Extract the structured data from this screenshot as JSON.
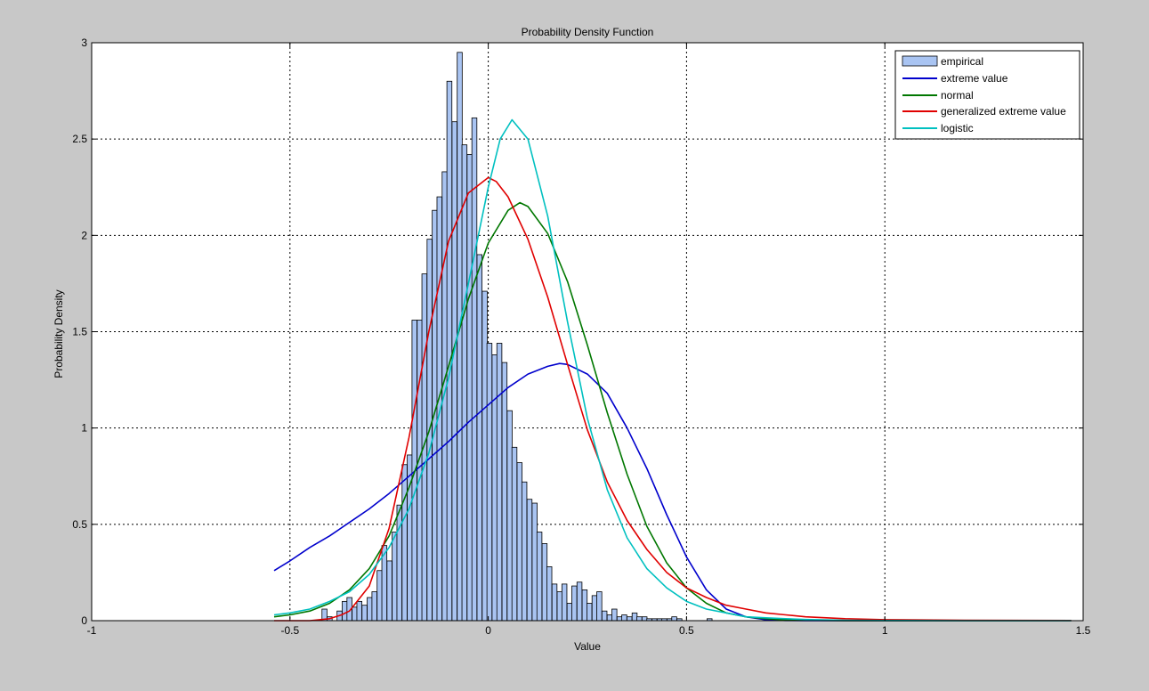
{
  "chart_data": {
    "type": "bar",
    "title": "Probability Density Function",
    "xlabel": "Value",
    "ylabel": "Probability Density",
    "xlim": [
      -1,
      1.5
    ],
    "ylim": [
      0,
      3
    ],
    "xticks": [
      -1,
      -0.5,
      0,
      0.5,
      1,
      1.5
    ],
    "xtick_labels": [
      "-1",
      "-0.5",
      "0",
      "0.5",
      "1",
      "1.5"
    ],
    "yticks": [
      0,
      0.5,
      1,
      1.5,
      2,
      2.5,
      3
    ],
    "ytick_labels": [
      "0",
      "0.5",
      "1",
      "1.5",
      "2",
      "2.5",
      "3"
    ],
    "grid": true,
    "legend_position": "top-right",
    "colors": {
      "axes_background": "#ffffff",
      "figure_background": "#c8c8c8",
      "grid": "#000000",
      "empirical_fill": "#a9c4f2",
      "empirical_edge": "#000000",
      "extreme_value": "#0000cc",
      "normal": "#007700",
      "gev": "#e00000",
      "logistic": "#00c0c0"
    },
    "histogram": {
      "name": "empirical",
      "bin_width": 0.0126,
      "x": [
        -0.413,
        -0.4,
        -0.388,
        -0.375,
        -0.362,
        -0.35,
        -0.337,
        -0.325,
        -0.312,
        -0.299,
        -0.287,
        -0.274,
        -0.262,
        -0.249,
        -0.236,
        -0.224,
        -0.211,
        -0.198,
        -0.186,
        -0.173,
        -0.161,
        -0.148,
        -0.135,
        -0.123,
        -0.11,
        -0.098,
        -0.085,
        -0.072,
        -0.06,
        -0.047,
        -0.035,
        -0.022,
        -0.009,
        0.003,
        0.016,
        0.028,
        0.041,
        0.054,
        0.066,
        0.079,
        0.091,
        0.104,
        0.117,
        0.129,
        0.142,
        0.154,
        0.167,
        0.18,
        0.192,
        0.205,
        0.217,
        0.23,
        0.243,
        0.255,
        0.268,
        0.28,
        0.293,
        0.306,
        0.318,
        0.331,
        0.343,
        0.356,
        0.369,
        0.381,
        0.394,
        0.406,
        0.419,
        0.432,
        0.444,
        0.457,
        0.469,
        0.482,
        0.495,
        0.507,
        0.52,
        0.533,
        0.545,
        0.558,
        0.57,
        0.583,
        0.596,
        0.608,
        0.621,
        0.633,
        0.646,
        0.659,
        0.671,
        0.684,
        0.696,
        0.709,
        0.722,
        0.734,
        0.747,
        0.759,
        0.772,
        0.785,
        0.797,
        0.81,
        0.822,
        0.835,
        0.848,
        0.86,
        0.873,
        0.885,
        0.898,
        0.911,
        0.923,
        0.936,
        0.948,
        0.961,
        0.974,
        0.986,
        0.999,
        1.011,
        1.024,
        1.037,
        1.049,
        1.062,
        1.074,
        1.087,
        1.1,
        1.112,
        1.125,
        1.137,
        1.15,
        1.163,
        1.175,
        1.188,
        1.2,
        1.213,
        1.226,
        1.238,
        1.251,
        1.263,
        1.276,
        1.289,
        1.301,
        1.314,
        1.326,
        1.339
      ],
      "values": [
        0.06,
        0.02,
        0.0,
        0.05,
        0.1,
        0.12,
        0.07,
        0.1,
        0.08,
        0.12,
        0.15,
        0.26,
        0.39,
        0.31,
        0.46,
        0.6,
        0.81,
        0.86,
        1.56,
        1.56,
        1.8,
        1.98,
        2.13,
        2.2,
        2.33,
        2.8,
        2.59,
        2.95,
        2.47,
        2.42,
        2.61,
        1.9,
        1.71,
        1.44,
        1.38,
        1.44,
        1.34,
        1.09,
        0.9,
        0.82,
        0.72,
        0.63,
        0.61,
        0.46,
        0.4,
        0.28,
        0.19,
        0.15,
        0.19,
        0.09,
        0.18,
        0.2,
        0.16,
        0.09,
        0.13,
        0.15,
        0.05,
        0.03,
        0.06,
        0.02,
        0.03,
        0.02,
        0.04,
        0.02,
        0.02,
        0.01,
        0.01,
        0.01,
        0.01,
        0.01,
        0.02,
        0.01,
        0.0,
        0.0,
        0.0,
        0.0,
        0.0,
        0.01,
        0.0,
        0.0,
        0.0,
        0.0,
        0.0,
        0.0,
        0.0,
        0.0,
        0.0,
        0.0,
        0.0,
        0.0,
        0.0,
        0.0,
        0.0,
        0.0,
        0.0,
        0.0,
        0.0,
        0.0,
        0.0,
        0.0,
        0.0,
        0.0,
        0.0,
        0.0,
        0.0,
        0.0,
        0.0,
        0.0,
        0.0,
        0.0,
        0.0,
        0.0,
        0.0,
        0.0,
        0.0,
        0.0,
        0.0,
        0.0,
        0.0,
        0.0,
        0.0,
        0.0,
        0.0,
        0.0,
        0.0,
        0.0,
        0.0,
        0.0,
        0.0,
        0.0,
        0.0,
        0.0,
        0.0,
        0.0,
        0.0,
        0.0,
        0.0,
        0.0,
        0.0,
        0.0
      ]
    },
    "series": [
      {
        "name": "extreme value",
        "color": "#0000cc",
        "x": [
          -0.54,
          -0.5,
          -0.45,
          -0.4,
          -0.35,
          -0.3,
          -0.25,
          -0.2,
          -0.15,
          -0.1,
          -0.05,
          0.0,
          0.05,
          0.1,
          0.15,
          0.18,
          0.2,
          0.25,
          0.3,
          0.35,
          0.4,
          0.45,
          0.5,
          0.55,
          0.6,
          0.65,
          0.7,
          0.75,
          0.8,
          0.9,
          1.0,
          1.2,
          1.47
        ],
        "y": [
          0.26,
          0.31,
          0.38,
          0.44,
          0.51,
          0.58,
          0.66,
          0.75,
          0.84,
          0.93,
          1.03,
          1.12,
          1.21,
          1.28,
          1.32,
          1.335,
          1.33,
          1.28,
          1.18,
          1.0,
          0.79,
          0.55,
          0.33,
          0.16,
          0.06,
          0.02,
          0.005,
          0.001,
          0.0,
          0.0,
          0.0,
          0.0,
          0.0
        ]
      },
      {
        "name": "normal",
        "color": "#007700",
        "x": [
          -0.54,
          -0.5,
          -0.45,
          -0.4,
          -0.35,
          -0.3,
          -0.25,
          -0.2,
          -0.15,
          -0.1,
          -0.05,
          0.0,
          0.05,
          0.08,
          0.1,
          0.15,
          0.2,
          0.25,
          0.3,
          0.35,
          0.4,
          0.45,
          0.5,
          0.55,
          0.6,
          0.65,
          0.7,
          0.75,
          0.8,
          0.9,
          1.0,
          1.2,
          1.47
        ],
        "y": [
          0.02,
          0.03,
          0.05,
          0.09,
          0.16,
          0.27,
          0.44,
          0.69,
          0.98,
          1.32,
          1.67,
          1.96,
          2.13,
          2.17,
          2.15,
          2.01,
          1.76,
          1.43,
          1.08,
          0.76,
          0.49,
          0.3,
          0.17,
          0.09,
          0.04,
          0.02,
          0.01,
          0.004,
          0.002,
          0.0,
          0.0,
          0.0,
          0.0
        ]
      },
      {
        "name": "generalized extreme value",
        "color": "#e00000",
        "x": [
          -0.54,
          -0.45,
          -0.4,
          -0.37,
          -0.35,
          -0.3,
          -0.25,
          -0.2,
          -0.15,
          -0.1,
          -0.05,
          0.0,
          0.02,
          0.05,
          0.1,
          0.15,
          0.2,
          0.25,
          0.3,
          0.35,
          0.4,
          0.45,
          0.5,
          0.55,
          0.6,
          0.65,
          0.7,
          0.75,
          0.8,
          0.9,
          1.0,
          1.2,
          1.47
        ],
        "y": [
          0.0,
          0.0,
          0.01,
          0.03,
          0.05,
          0.18,
          0.48,
          0.95,
          1.5,
          1.97,
          2.22,
          2.3,
          2.28,
          2.2,
          1.98,
          1.68,
          1.33,
          0.99,
          0.72,
          0.52,
          0.37,
          0.25,
          0.17,
          0.12,
          0.08,
          0.06,
          0.04,
          0.03,
          0.02,
          0.01,
          0.005,
          0.002,
          0.001
        ]
      },
      {
        "name": "logistic",
        "color": "#00c0c0",
        "x": [
          -0.54,
          -0.5,
          -0.45,
          -0.4,
          -0.35,
          -0.3,
          -0.25,
          -0.2,
          -0.15,
          -0.1,
          -0.05,
          0.0,
          0.03,
          0.06,
          0.1,
          0.15,
          0.2,
          0.25,
          0.3,
          0.35,
          0.4,
          0.45,
          0.5,
          0.55,
          0.6,
          0.65,
          0.7,
          0.75,
          0.8,
          0.9,
          1.0,
          1.2,
          1.47
        ],
        "y": [
          0.03,
          0.04,
          0.06,
          0.1,
          0.15,
          0.24,
          0.38,
          0.58,
          0.87,
          1.26,
          1.75,
          2.25,
          2.5,
          2.6,
          2.5,
          2.1,
          1.55,
          1.05,
          0.68,
          0.43,
          0.27,
          0.17,
          0.1,
          0.06,
          0.04,
          0.02,
          0.015,
          0.01,
          0.006,
          0.002,
          0.001,
          0.0,
          0.0
        ]
      }
    ]
  }
}
